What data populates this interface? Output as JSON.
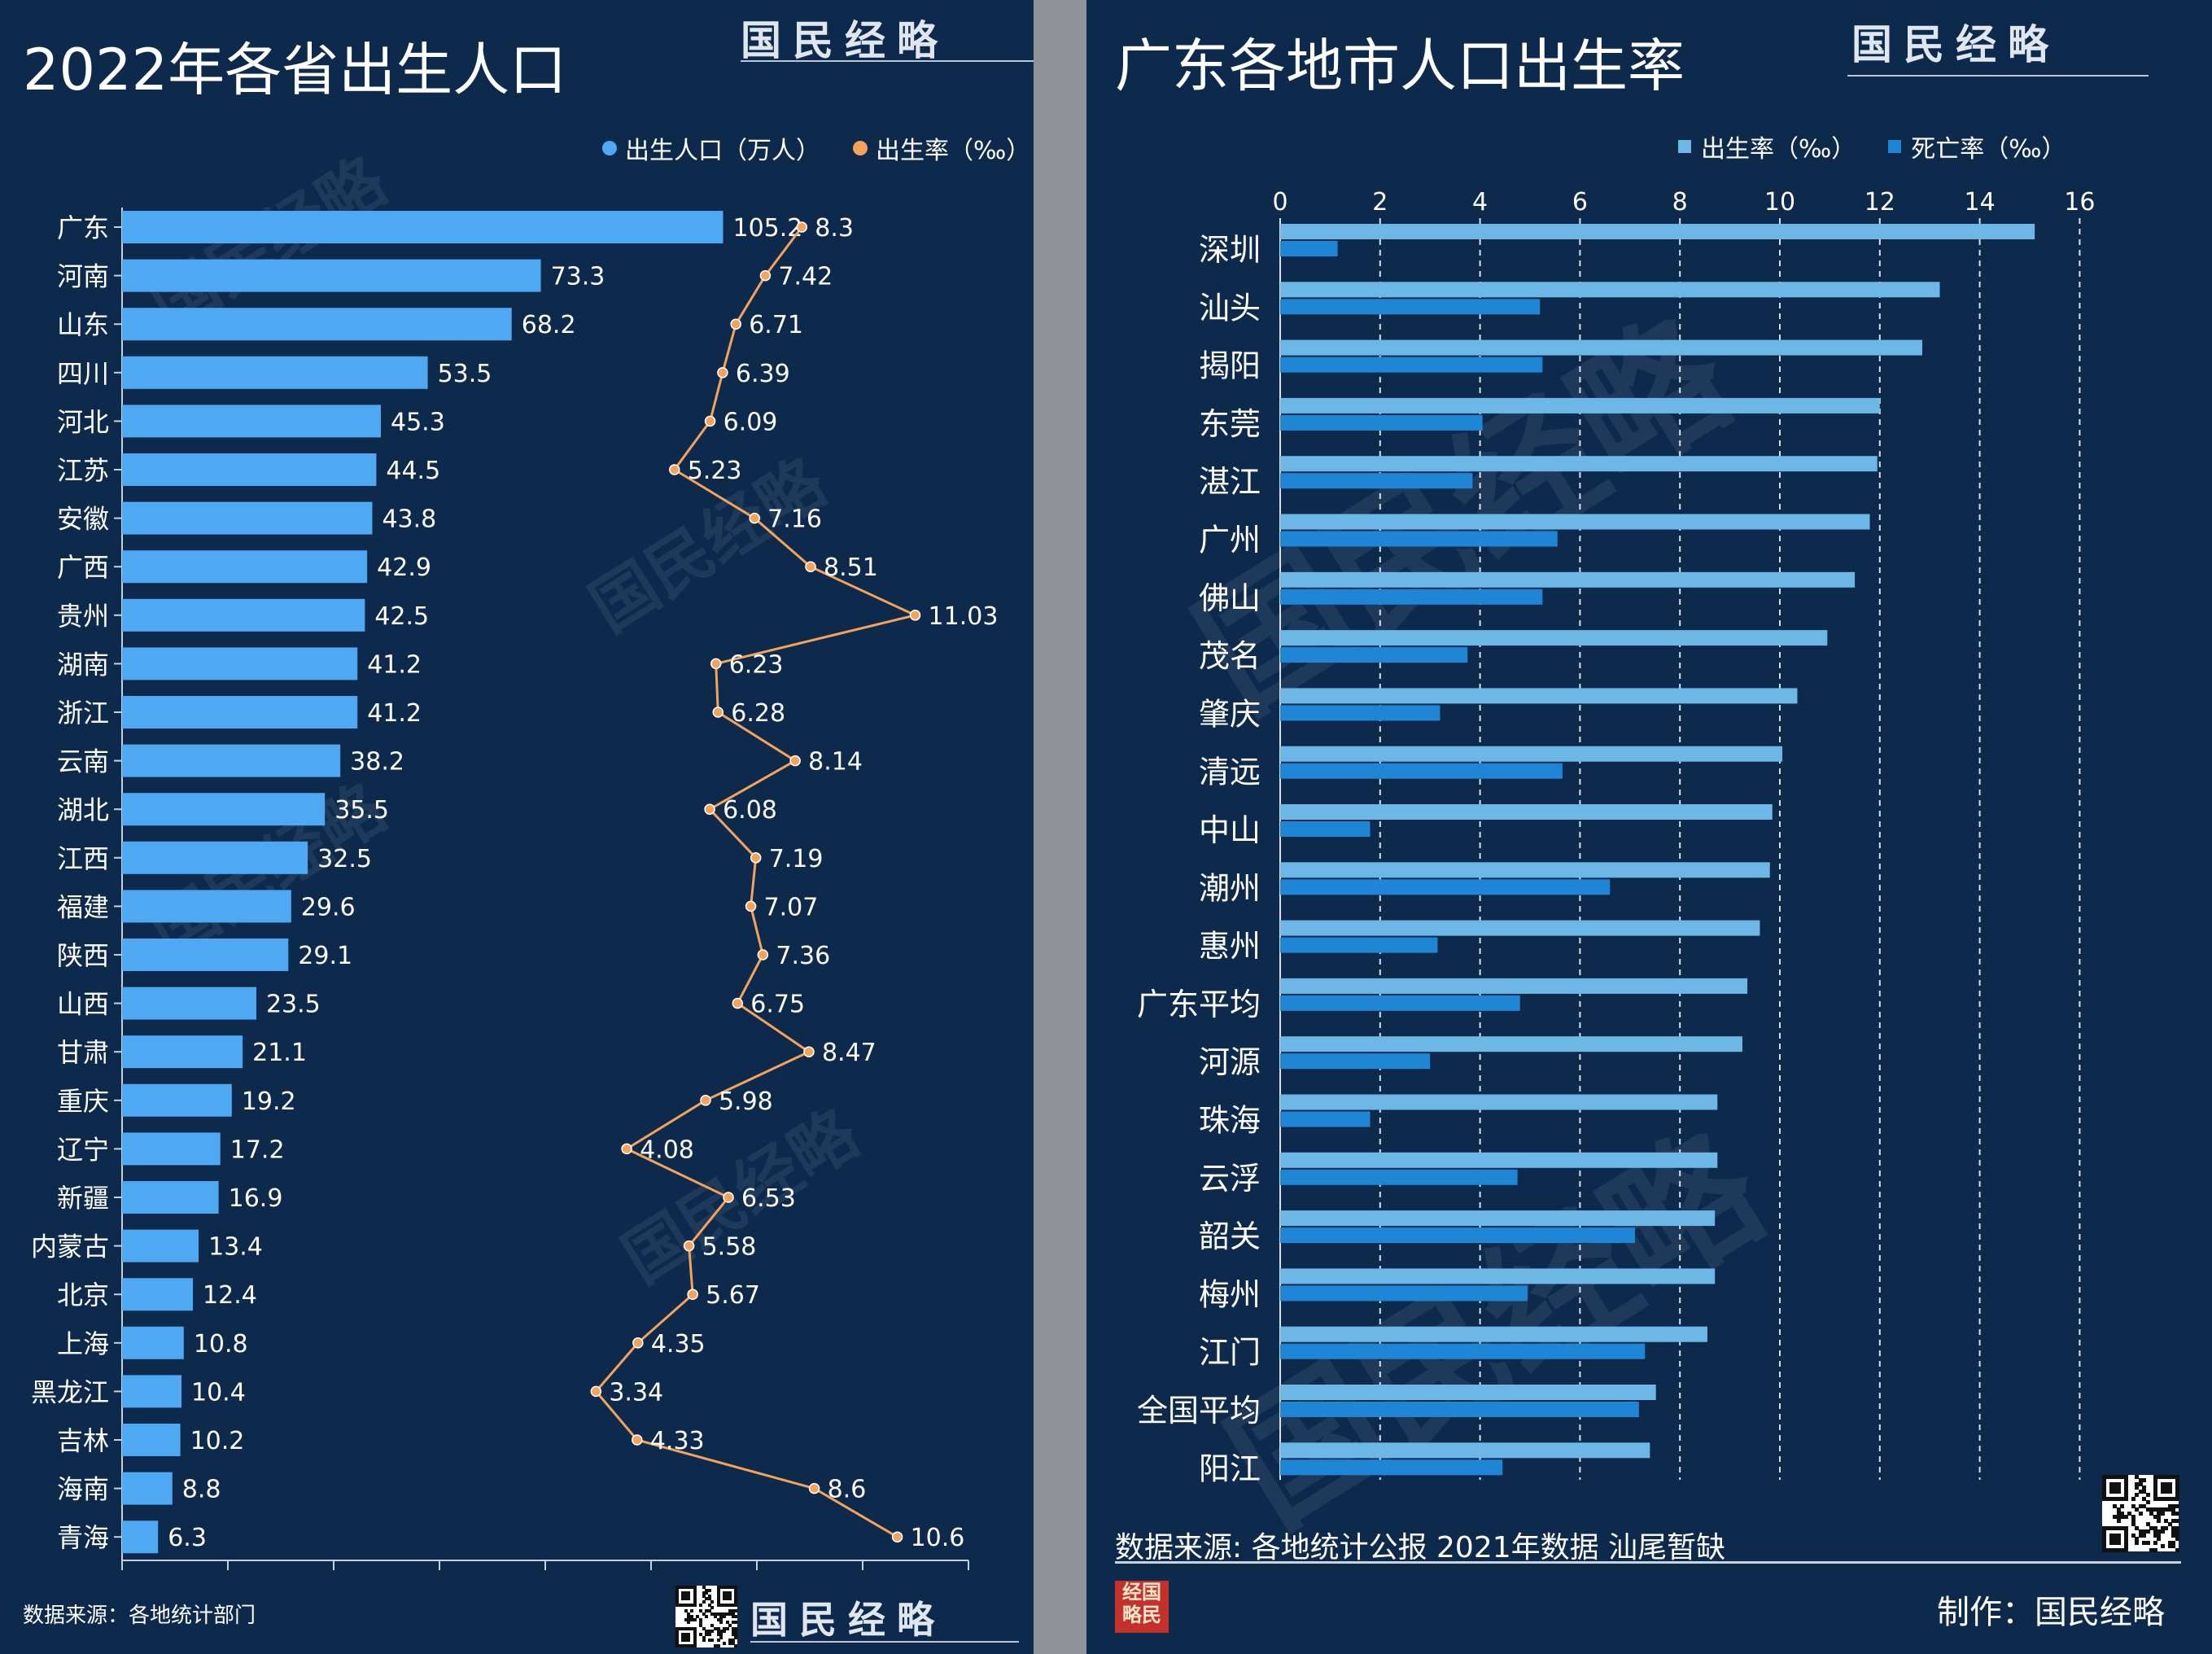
{
  "left": {
    "title": "2022年各省出生人口",
    "logo": "国民经略",
    "legend": [
      {
        "label": "出生人口（万人）",
        "color": "#4ea8f2"
      },
      {
        "label": "出生率（‰）",
        "color": "#f5a25a"
      }
    ],
    "source": "数据来源：各地统计部门",
    "footer_logo": "国民经略"
  },
  "right": {
    "title": "广东各地市人口出生率",
    "logo": "国民经略",
    "legend": [
      {
        "label": "出生率（‰）",
        "color": "#6cb7e6"
      },
      {
        "label": "死亡率（‰）",
        "color": "#1f86d6"
      }
    ],
    "source": "数据来源: 各地统计公报 2021年数据 汕尾暂缺",
    "credit": "制作：国民经略",
    "seal": "经国略民"
  },
  "chart_data": [
    {
      "type": "bar",
      "orientation": "horizontal",
      "title": "2022年各省出生人口",
      "categories": [
        "广东",
        "河南",
        "山东",
        "四川",
        "河北",
        "江苏",
        "安徽",
        "广西",
        "贵州",
        "湖南",
        "浙江",
        "云南",
        "湖北",
        "江西",
        "福建",
        "陕西",
        "山西",
        "甘肃",
        "重庆",
        "辽宁",
        "新疆",
        "内蒙古",
        "北京",
        "上海",
        "黑龙江",
        "吉林",
        "海南",
        "青海"
      ],
      "series": [
        {
          "name": "出生人口（万人）",
          "type": "bar",
          "color": "#4ea8f2",
          "values": [
            105.2,
            73.3,
            68.2,
            53.5,
            45.3,
            44.5,
            43.8,
            42.9,
            42.5,
            41.2,
            41.2,
            38.2,
            35.5,
            32.5,
            29.6,
            29.1,
            23.5,
            21.1,
            19.2,
            17.2,
            16.9,
            13.4,
            12.4,
            10.8,
            10.4,
            10.2,
            8.8,
            6.3
          ]
        },
        {
          "name": "出生率（‰）",
          "type": "line",
          "color": "#f5a25a",
          "values": [
            8.3,
            7.42,
            6.71,
            6.39,
            6.09,
            5.23,
            7.16,
            8.51,
            11.03,
            6.23,
            6.28,
            8.14,
            6.08,
            7.19,
            7.07,
            7.36,
            6.75,
            8.47,
            5.98,
            4.08,
            6.53,
            5.58,
            5.67,
            4.35,
            3.34,
            4.33,
            8.6,
            10.6
          ]
        }
      ],
      "legend_position": "top-right",
      "grid": false
    },
    {
      "type": "bar",
      "orientation": "horizontal",
      "title": "广东各地市人口出生率",
      "categories": [
        "深圳",
        "汕头",
        "揭阳",
        "东莞",
        "湛江",
        "广州",
        "佛山",
        "茂名",
        "肇庆",
        "清远",
        "中山",
        "潮州",
        "惠州",
        "广东平均",
        "河源",
        "珠海",
        "云浮",
        "韶关",
        "梅州",
        "江门",
        "全国平均",
        "阳江"
      ],
      "series": [
        {
          "name": "出生率（‰）",
          "color": "#6cb7e6",
          "values": [
            15.1,
            13.2,
            12.85,
            12.0,
            11.95,
            11.8,
            11.5,
            10.95,
            10.35,
            10.05,
            9.85,
            9.8,
            9.6,
            9.35,
            9.25,
            8.75,
            8.75,
            8.7,
            8.7,
            8.55,
            7.52,
            7.4
          ]
        },
        {
          "name": "死亡率（‰）",
          "color": "#1f86d6",
          "values": [
            1.15,
            5.2,
            5.25,
            4.05,
            3.85,
            5.55,
            5.25,
            3.75,
            3.2,
            5.65,
            1.8,
            6.6,
            3.15,
            4.8,
            3.0,
            1.8,
            4.75,
            7.1,
            4.95,
            7.3,
            7.18,
            4.45
          ]
        }
      ],
      "x_ticks": [
        0,
        2,
        4,
        6,
        8,
        10,
        12,
        14,
        16
      ],
      "xlim": [
        0,
        16
      ],
      "legend_position": "top-right",
      "grid": "vertical dashed"
    }
  ]
}
